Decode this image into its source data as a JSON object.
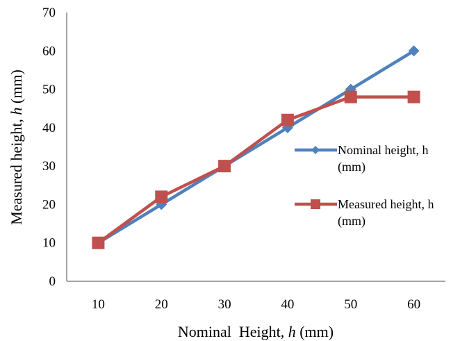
{
  "chart_data": {
    "type": "line",
    "title": "",
    "xlabel": {
      "main": "Nominal  Height, ",
      "var": "h",
      "unit": " (mm)"
    },
    "ylabel": {
      "main": "Measured height, ",
      "var": "h",
      "unit": " (mm)"
    },
    "categories": [
      "10",
      "20",
      "30",
      "40",
      "50",
      "60"
    ],
    "x": [
      10,
      20,
      30,
      40,
      50,
      60
    ],
    "ylim": [
      0,
      70
    ],
    "yticks": [
      "0",
      "10",
      "20",
      "30",
      "40",
      "50",
      "60",
      "70"
    ],
    "grid": false,
    "legend_position": "right",
    "series": [
      {
        "name": "Nominal height, h (mm)",
        "legend_lines": [
          "Nominal height, h",
          "(mm)"
        ],
        "color": "#4F81BD",
        "marker": "diamond",
        "values": [
          10,
          20,
          30,
          40,
          50,
          60
        ]
      },
      {
        "name": "Measured height, h (mm)",
        "legend_lines": [
          "Measured height, h",
          "(mm)"
        ],
        "color": "#C0504D",
        "marker": "square",
        "values": [
          10,
          22,
          30,
          42,
          48,
          48
        ]
      }
    ]
  }
}
